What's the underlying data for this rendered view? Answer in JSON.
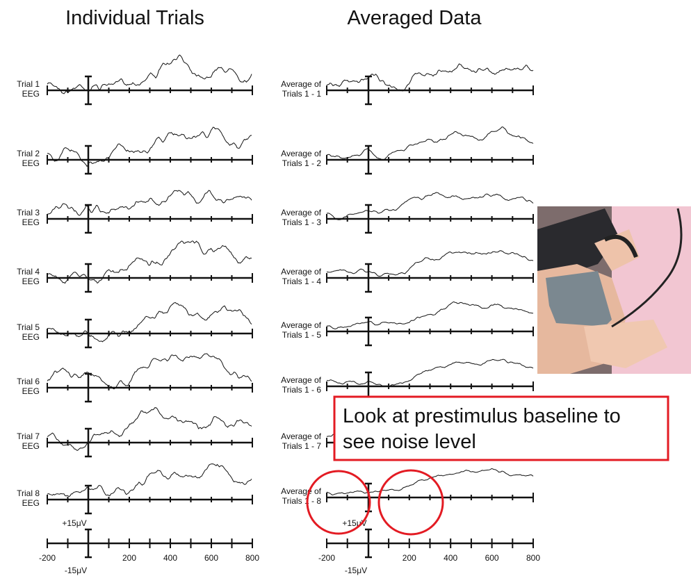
{
  "titles": [
    "Individual Trials",
    "Averaged Data"
  ],
  "left_rows": [
    [
      "Trial 1",
      "EEG"
    ],
    [
      "Trial 2",
      "EEG"
    ],
    [
      "Trial 3",
      "EEG"
    ],
    [
      "Trial 4",
      "EEG"
    ],
    [
      "Trial 5",
      "EEG"
    ],
    [
      "Trial 6",
      "EEG"
    ],
    [
      "Trial 7",
      "EEG"
    ],
    [
      "Trial 8",
      "EEG"
    ]
  ],
  "right_rows": [
    [
      "Average of",
      "Trials 1 - 1"
    ],
    [
      "Average of",
      "Trials 1 - 2"
    ],
    [
      "Average of",
      "Trials 1 - 3"
    ],
    [
      "Average of",
      "Trials 1 - 4"
    ],
    [
      "Average of",
      "Trials 1 - 5"
    ],
    [
      "Average of",
      "Trials 1 - 6"
    ],
    [
      "Average of",
      "Trials 1 - 7"
    ],
    [
      "Average of",
      "Trials 1 - 8"
    ]
  ],
  "left_axis": {
    "labels": [
      "-200",
      "200",
      "400",
      "600",
      "800"
    ],
    "scale_plus": "+15μV",
    "scale_minus": "-15μV"
  },
  "right_axis": {
    "labels": [
      "-200",
      "200",
      "400",
      "600",
      "800"
    ],
    "scale_plus": "+15μV",
    "scale_minus": "-15μV"
  },
  "callout": [
    "Look at prestimulus baseline to",
    "see noise level"
  ]
}
